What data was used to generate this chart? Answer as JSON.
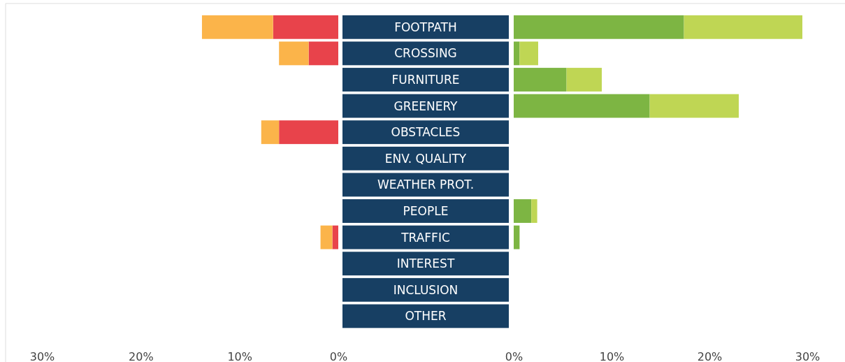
{
  "chart_data": [
    {
      "type": "bar",
      "orientation": "horizontal",
      "stacked": true,
      "categories": [
        "FOOTPATH",
        "CROSSING",
        "FURNITURE",
        "GREENERY",
        "OBSTACLES",
        "ENV. QUALITY",
        "WEATHER PROT.",
        "PEOPLE",
        "TRAFFIC",
        "INTEREST",
        "INCLUSION",
        "OTHER"
      ],
      "series": [
        {
          "color": "#e8434b",
          "values": [
            6.6,
            3.0,
            null,
            null,
            6.0,
            null,
            null,
            null,
            0.6,
            null,
            null,
            null
          ]
        },
        {
          "color": "#fbb44a",
          "values": [
            7.2,
            3.0,
            null,
            null,
            1.8,
            null,
            null,
            null,
            1.2,
            null,
            null,
            null
          ]
        }
      ],
      "xlim": [
        30,
        0
      ],
      "xticks": [
        {
          "value": 30,
          "label": "30%"
        },
        {
          "value": 20,
          "label": "20%"
        },
        {
          "value": 10,
          "label": "10%"
        },
        {
          "value": 0,
          "label": "0%"
        }
      ],
      "grid": false
    },
    {
      "type": "bar",
      "orientation": "horizontal",
      "stacked": true,
      "categories": [
        null,
        null,
        null,
        null,
        null,
        null,
        null,
        null,
        null,
        null,
        null,
        null
      ],
      "series": [
        {
          "color": "#7db543",
          "values": [
            17.4,
            0.6,
            5.4,
            13.9,
            null,
            null,
            null,
            1.8,
            0.6,
            null,
            null,
            null
          ]
        },
        {
          "color": "#bfd654",
          "values": [
            12.1,
            1.9,
            3.6,
            9.1,
            null,
            null,
            null,
            0.6,
            null,
            null,
            null,
            null
          ]
        }
      ],
      "xlim": [
        0,
        30
      ],
      "xticks": [
        {
          "value": 0,
          "label": "0%"
        },
        {
          "value": 10,
          "label": "10%"
        },
        {
          "value": 20,
          "label": "20%"
        },
        {
          "value": 30,
          "label": "30%"
        }
      ],
      "grid": false
    }
  ]
}
